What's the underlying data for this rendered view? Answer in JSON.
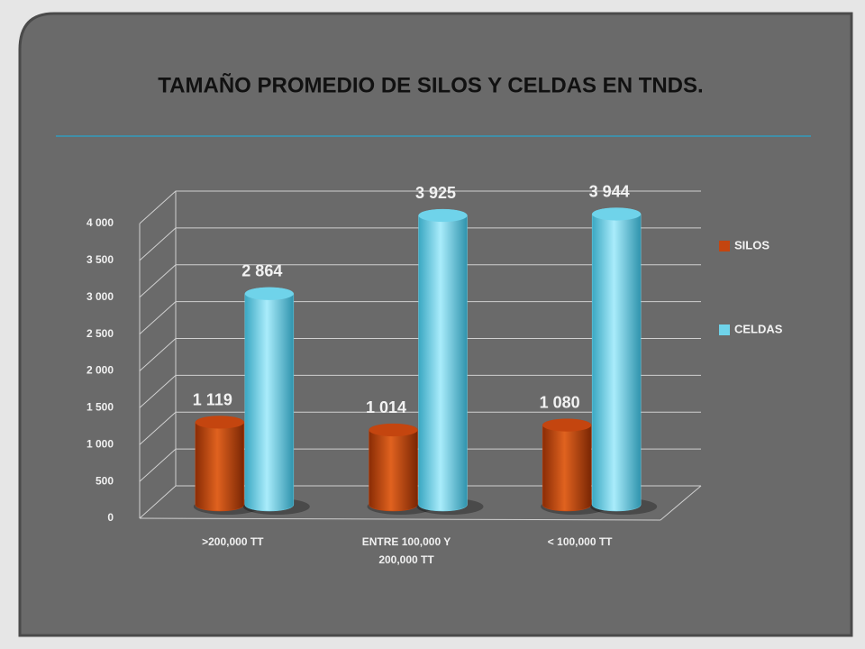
{
  "chart_data": {
    "type": "bar3d",
    "title": "TAMAÑO PROMEDIO DE SILOS Y CELDAS EN TNDS.",
    "categories": [
      ">200,000 TT",
      "ENTRE 100,000 Y 200,000 TT",
      "< 100,000 TT"
    ],
    "series": [
      {
        "name": "SILOS",
        "color": "#c4450f",
        "values": [
          1119,
          1014,
          1080
        ],
        "value_labels": [
          "1 119",
          "1 014",
          "1 080"
        ]
      },
      {
        "name": "CELDAS",
        "color": "#6fd3ea",
        "values": [
          2864,
          3925,
          3944
        ],
        "value_labels": [
          "2 864",
          "3 925",
          "3 944"
        ]
      }
    ],
    "ylim": [
      0,
      4000
    ],
    "yticks": [
      0,
      500,
      {
        "value": 1000,
        "label": "1 000"
      },
      {
        "value": 1500,
        "label": "1 500"
      },
      {
        "value": 2000,
        "label": "2 000"
      },
      {
        "value": 2500,
        "label": "2 500"
      },
      {
        "value": 3000,
        "label": "3 000"
      },
      {
        "value": 3500,
        "label": "3 500"
      },
      {
        "value": 4000,
        "label": "4 000"
      }
    ],
    "grid": true,
    "legend": "right"
  }
}
